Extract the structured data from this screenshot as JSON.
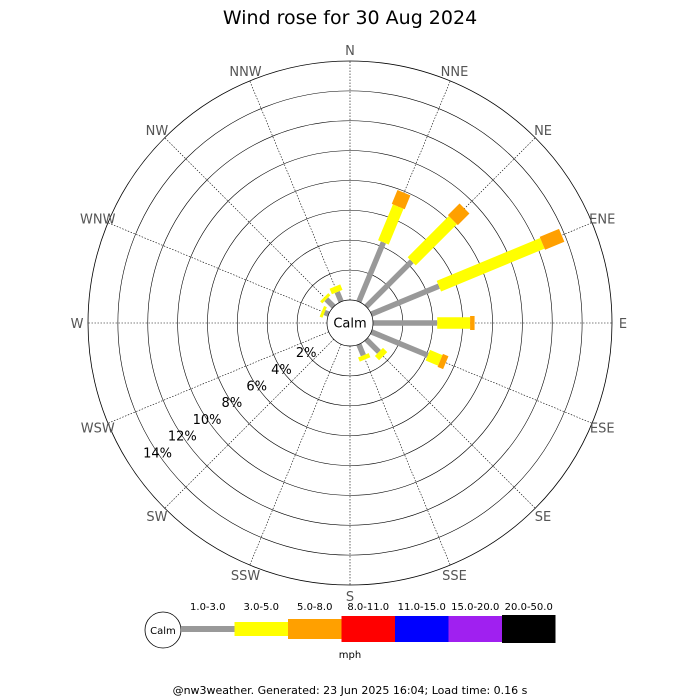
{
  "chart_data": {
    "type": "wind-rose",
    "title": "Wind rose for 30 Aug 2024",
    "directions": [
      "N",
      "NNE",
      "NE",
      "ENE",
      "E",
      "ESE",
      "SE",
      "SSE",
      "S",
      "SSW",
      "SW",
      "WSW",
      "W",
      "WNW",
      "NW",
      "NNW"
    ],
    "radial_ticks": [
      "2%",
      "4%",
      "6%",
      "8%",
      "10%",
      "12%",
      "14%"
    ],
    "radial_max_percent": 16,
    "calm_label": "Calm",
    "speed_unit": "mph",
    "speed_bins": [
      {
        "label": "1.0-3.0",
        "color": "#999999"
      },
      {
        "label": "3.0-5.0",
        "color": "#ffff00"
      },
      {
        "label": "5.0-8.0",
        "color": "#ffa000"
      },
      {
        "label": "8.0-11.0",
        "color": "#ff0000"
      },
      {
        "label": "11.0-15.0",
        "color": "#0000ff"
      },
      {
        "label": "15.0-20.0",
        "color": "#a020f0"
      },
      {
        "label": "20.0-50.0",
        "color": "#000000"
      }
    ],
    "series": [
      {
        "direction": "N",
        "values": [
          0,
          0,
          0,
          0,
          0,
          0,
          0
        ]
      },
      {
        "direction": "NNE",
        "values": [
          4.3,
          2.6,
          1.0,
          0,
          0,
          0,
          0
        ]
      },
      {
        "direction": "NE",
        "values": [
          4.3,
          3.9,
          1.1,
          0,
          0,
          0,
          0
        ]
      },
      {
        "direction": "ENE",
        "values": [
          4.9,
          7.5,
          1.4,
          0,
          0,
          0,
          0
        ]
      },
      {
        "direction": "E",
        "values": [
          4.3,
          2.2,
          0.3,
          0,
          0,
          0,
          0
        ]
      },
      {
        "direction": "ESE",
        "values": [
          4.1,
          0.9,
          0.4,
          0,
          0,
          0,
          0
        ]
      },
      {
        "direction": "SE",
        "values": [
          1.2,
          0.4,
          0,
          0,
          0,
          0,
          0
        ]
      },
      {
        "direction": "SSE",
        "values": [
          0.8,
          0.3,
          0,
          0,
          0,
          0,
          0
        ]
      },
      {
        "direction": "S",
        "values": [
          0,
          0,
          0,
          0,
          0,
          0,
          0
        ]
      },
      {
        "direction": "SSW",
        "values": [
          0,
          0,
          0,
          0,
          0,
          0,
          0
        ]
      },
      {
        "direction": "SW",
        "values": [
          0,
          0,
          0,
          0,
          0,
          0,
          0
        ]
      },
      {
        "direction": "WSW",
        "values": [
          0,
          0,
          0,
          0,
          0,
          0,
          0
        ]
      },
      {
        "direction": "W",
        "values": [
          0,
          0,
          0,
          0,
          0,
          0,
          0
        ]
      },
      {
        "direction": "WNW",
        "values": [
          0.3,
          0.2,
          0,
          0,
          0,
          0,
          0
        ]
      },
      {
        "direction": "NW",
        "values": [
          0.7,
          0.2,
          0,
          0,
          0,
          0,
          0
        ]
      },
      {
        "direction": "NNW",
        "values": [
          0.7,
          0.4,
          0,
          0,
          0,
          0,
          0
        ]
      }
    ]
  },
  "footer": "@nw3weather. Generated: 23 Jun 2025 16:04; Load time: 0.16 s"
}
